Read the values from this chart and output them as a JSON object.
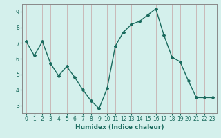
{
  "x": [
    0,
    1,
    2,
    3,
    4,
    5,
    6,
    7,
    8,
    9,
    10,
    11,
    12,
    13,
    14,
    15,
    16,
    17,
    18,
    19,
    20,
    21,
    22,
    23
  ],
  "y": [
    7.1,
    6.2,
    7.1,
    5.7,
    4.9,
    5.5,
    4.8,
    4.0,
    3.3,
    2.8,
    4.1,
    6.8,
    7.7,
    8.2,
    8.4,
    8.8,
    9.2,
    7.5,
    6.1,
    5.8,
    4.6,
    3.5,
    3.5,
    3.5
  ],
  "line_color": "#1a6b5e",
  "marker": "D",
  "marker_size": 2,
  "bg_color": "#d4f0ec",
  "grid_color": "#c8b0b0",
  "xlabel": "Humidex (Indice chaleur)",
  "xlim": [
    -0.5,
    23.5
  ],
  "ylim": [
    2.5,
    9.5
  ],
  "yticks": [
    3,
    4,
    5,
    6,
    7,
    8,
    9
  ],
  "xticks": [
    0,
    1,
    2,
    3,
    4,
    5,
    6,
    7,
    8,
    9,
    10,
    11,
    12,
    13,
    14,
    15,
    16,
    17,
    18,
    19,
    20,
    21,
    22,
    23
  ],
  "tick_color": "#1a6b5e",
  "xlabel_fontsize": 6.5,
  "tick_fontsize": 5.5,
  "line_width": 1.0,
  "frame_color": "#888888"
}
